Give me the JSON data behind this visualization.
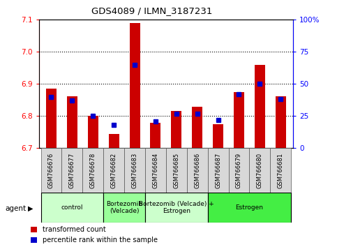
{
  "title": "GDS4089 / ILMN_3187231",
  "samples": [
    "GSM766676",
    "GSM766677",
    "GSM766678",
    "GSM766682",
    "GSM766683",
    "GSM766684",
    "GSM766685",
    "GSM766686",
    "GSM766687",
    "GSM766679",
    "GSM766680",
    "GSM766681"
  ],
  "red_values": [
    6.885,
    6.862,
    6.8,
    6.745,
    7.09,
    6.78,
    6.815,
    6.83,
    6.775,
    6.875,
    6.96,
    6.862
  ],
  "blue_values_pct": [
    40,
    37,
    25,
    18,
    65,
    21,
    27,
    27,
    22,
    42,
    50,
    38
  ],
  "ymin": 6.7,
  "ymax": 7.1,
  "yticks_left": [
    6.7,
    6.8,
    6.9,
    7.0,
    7.1
  ],
  "yticks_right_vals": [
    0,
    25,
    50,
    75,
    100
  ],
  "yticks_right_labels": [
    "0",
    "25",
    "50",
    "75",
    "100%"
  ],
  "bar_color": "#cc0000",
  "blue_color": "#0000cc",
  "groups": [
    {
      "label": "control",
      "start": 0,
      "end": 3,
      "color": "#ccffcc"
    },
    {
      "label": "Bortezomib\n(Velcade)",
      "start": 3,
      "end": 5,
      "color": "#99ff99"
    },
    {
      "label": "Bortezomib (Velcade) +\nEstrogen",
      "start": 5,
      "end": 8,
      "color": "#ccffcc"
    },
    {
      "label": "Estrogen",
      "start": 8,
      "end": 12,
      "color": "#44ee44"
    }
  ],
  "agent_label": "agent",
  "legend_red": "transformed count",
  "legend_blue": "percentile rank within the sample",
  "bar_width": 0.5,
  "grid_lines": [
    6.8,
    6.9,
    7.0
  ]
}
